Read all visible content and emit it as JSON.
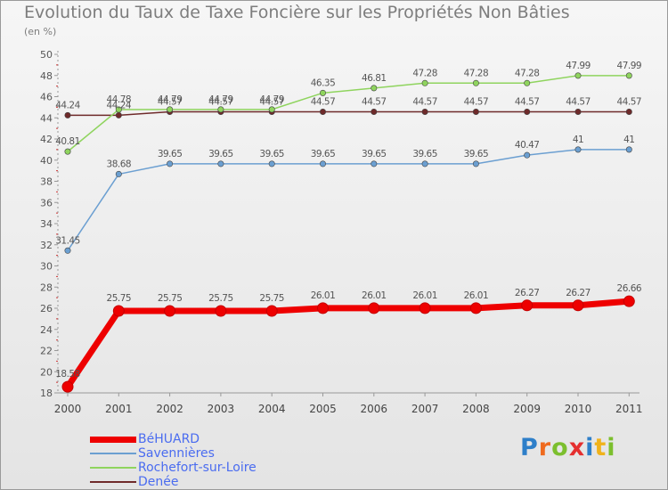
{
  "chart_data": {
    "type": "line",
    "title": "Evolution du Taux de Taxe Foncière sur les Propriétés Non Bâties",
    "ylabel": "(en %)",
    "xlabel": "",
    "categories": [
      "2000",
      "2001",
      "2002",
      "2003",
      "2004",
      "2005",
      "2006",
      "2007",
      "2008",
      "2009",
      "2010",
      "2011"
    ],
    "ylim": [
      18,
      50
    ],
    "yticks": [
      "18",
      "20",
      "22",
      "24",
      "26",
      "28",
      "30",
      "32",
      "34",
      "36",
      "38",
      "40",
      "42",
      "44",
      "46",
      "48",
      "50"
    ],
    "grid": false,
    "legend_position": "bottom-left",
    "series": [
      {
        "name": "BéHUARD",
        "color": "#ee0000",
        "values": [
          18.58,
          25.75,
          25.75,
          25.75,
          25.75,
          26.01,
          26.01,
          26.01,
          26.01,
          26.27,
          26.27,
          26.66
        ],
        "labels": [
          "18.58",
          "25.75",
          "25.75",
          "25.75",
          "25.75",
          "26.01",
          "26.01",
          "26.01",
          "26.01",
          "26.27",
          "26.27",
          "26.66"
        ]
      },
      {
        "name": "Savennières",
        "color": "#6b9fd1",
        "values": [
          31.45,
          38.68,
          39.65,
          39.65,
          39.65,
          39.65,
          39.65,
          39.65,
          39.65,
          40.47,
          41,
          41
        ],
        "labels": [
          "31.45",
          "38.68",
          "39.65",
          "39.65",
          "39.65",
          "39.65",
          "39.65",
          "39.65",
          "39.65",
          "40.47",
          "41",
          "41"
        ]
      },
      {
        "name": "Rochefort-sur-Loire",
        "color": "#8fd45e",
        "values": [
          40.81,
          44.78,
          44.79,
          44.79,
          44.79,
          46.35,
          46.81,
          47.28,
          47.28,
          47.28,
          47.99,
          47.99
        ],
        "labels": [
          "40.81",
          "44.78",
          "44.79",
          "44.79",
          "44.79",
          "46.35",
          "46.81",
          "47.28",
          "47.28",
          "47.28",
          "47.99",
          "47.99"
        ]
      },
      {
        "name": "Denée",
        "color": "#6e2a2a",
        "values": [
          44.24,
          44.24,
          44.57,
          44.57,
          44.57,
          44.57,
          44.57,
          44.57,
          44.57,
          44.57,
          44.57,
          44.57
        ],
        "labels": [
          "44.24",
          "44.24",
          "44.57",
          "44.57",
          "44.57",
          "44.57",
          "44.57",
          "44.57",
          "44.57",
          "44.57",
          "44.57",
          "44.57"
        ]
      }
    ]
  },
  "legend_label_color": "#4a6cf0",
  "logo": {
    "text": "Proxiti",
    "letter_colors": [
      "#2e7fc9",
      "#ef6a1e",
      "#7cbf2e",
      "#e52f2f",
      "#2e7fc9",
      "#f0b21b",
      "#7cbf2e"
    ]
  }
}
